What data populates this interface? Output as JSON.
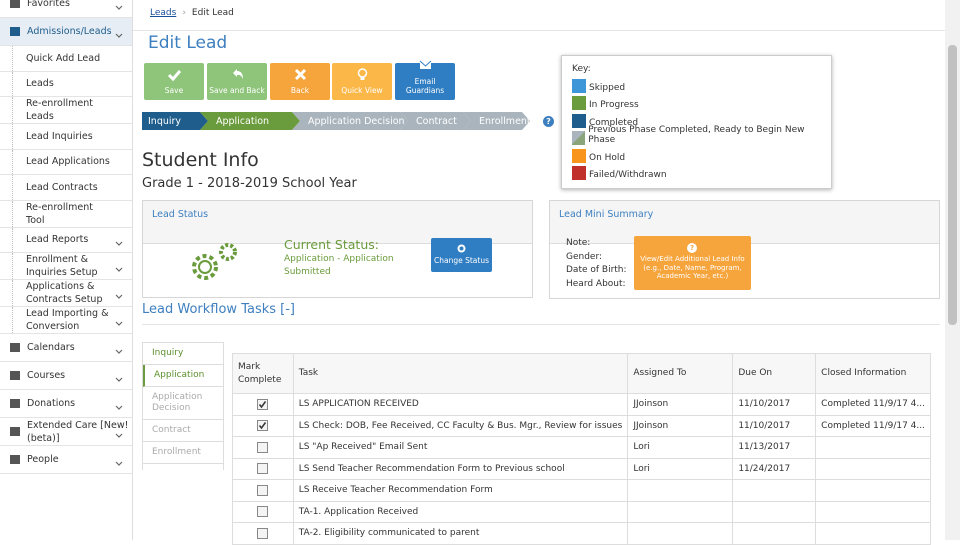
{
  "sidebar": {
    "items": [
      {
        "label": "Favorites",
        "level": 0,
        "chevron": true
      },
      {
        "label": "Admissions/Leads",
        "level": 0,
        "chevron": true,
        "active": true
      },
      {
        "label": "Quick Add Lead",
        "level": 1
      },
      {
        "label": "Leads",
        "level": 1
      },
      {
        "label": "Re-enrollment Leads",
        "level": 1
      },
      {
        "label": "Lead Inquiries",
        "level": 1
      },
      {
        "label": "Lead Applications",
        "level": 1
      },
      {
        "label": "Lead Contracts",
        "level": 1
      },
      {
        "label": "Re-enrollment Tool",
        "level": 1
      },
      {
        "label": "Lead Reports",
        "level": 1,
        "chevron": true
      },
      {
        "label": "Enrollment & Inquiries Setup",
        "level": 1,
        "chevron": true
      },
      {
        "label": "Applications & Contracts Setup",
        "level": 1,
        "chevron": true
      },
      {
        "label": "Lead Importing & Conversion",
        "level": 1,
        "chevron": true
      },
      {
        "label": "Calendars",
        "level": 0,
        "chevron": true
      },
      {
        "label": "Courses",
        "level": 0,
        "chevron": true
      },
      {
        "label": "Donations",
        "level": 0,
        "chevron": true
      },
      {
        "label": "Extended Care [New! (beta)]",
        "level": 0,
        "chevron": true
      },
      {
        "label": "People",
        "level": 0,
        "chevron": true
      }
    ]
  },
  "breadcrumb": [
    "Leads",
    "Edit Lead"
  ],
  "page_title": "Edit Lead",
  "buttons": [
    {
      "label": "Save",
      "color": "#8fc47b"
    },
    {
      "label": "Save and Back",
      "color": "#8fc47b"
    },
    {
      "label": "Back",
      "color": "#f6a43c"
    },
    {
      "label": "Quick View",
      "color": "#fbb848"
    },
    {
      "label": "Email Guardians",
      "color": "#2f7dc2"
    }
  ],
  "workflow_steps": [
    {
      "label": "Inquiry",
      "color": "#1f5d8c"
    },
    {
      "label": "Application",
      "color": "#6a9b3c"
    },
    {
      "label": "Application Decision",
      "color": "#a9b4bc"
    },
    {
      "label": "Contract",
      "color": "#a9b4bc"
    },
    {
      "label": "Enrollment",
      "color": "#a9b4bc"
    }
  ],
  "key": {
    "title": "Key:",
    "items": [
      {
        "label": "Skipped",
        "color": "#3d96d8"
      },
      {
        "label": "In Progress",
        "color": "#6a9b3c"
      },
      {
        "label": "Completed",
        "color": "#1f5d8c"
      },
      {
        "label": "Previous Phase Completed, Ready to Begin New Phase",
        "color": "#8aa57c"
      },
      {
        "label": "On Hold",
        "color": "#f7951d"
      },
      {
        "label": "Failed/Withdrawn",
        "color": "#c0312b"
      }
    ]
  },
  "student_info": {
    "title": "Student Info",
    "subtitle": "Grade 1 - 2018-2019 School Year"
  },
  "lead_status": {
    "title": "Lead Status",
    "current_status_label": "Current Status:",
    "status": "Application - Application Submitted",
    "button": "Change Status"
  },
  "lead_mini_summary": {
    "title": "Lead Mini Summary",
    "fields": [
      "Note:",
      "Gender:",
      "Date of Birth:",
      "Heard About:"
    ],
    "button": "View/Edit Additional Lead Info (e.g., Date, Name, Program, Academic Year, etc.)"
  },
  "workflow_tasks": {
    "title": "Lead Workflow Tasks [-]",
    "tabs": [
      {
        "label": "Inquiry",
        "active": false
      },
      {
        "label": "Application",
        "active": true
      },
      {
        "label": "Application Decision",
        "active": false
      },
      {
        "label": "Contract",
        "active": false
      },
      {
        "label": "Enrollment",
        "active": false
      }
    ],
    "columns": [
      "Mark Complete",
      "Task",
      "Assigned To",
      "Due On",
      "Closed Information"
    ],
    "rows": [
      {
        "checked": true,
        "task": "LS APPLICATION RECEIVED",
        "assigned_to": "JJoinson",
        "due_on": "11/10/2017",
        "closed": "Completed 11/9/17 4..."
      },
      {
        "checked": true,
        "task": "LS Check: DOB, Fee Received, CC Faculty & Bus. Mgr., Review for issues",
        "assigned_to": "JJoinson",
        "due_on": "11/10/2017",
        "closed": "Completed 11/9/17 4..."
      },
      {
        "checked": false,
        "task": "LS \"Ap Received\" Email Sent",
        "assigned_to": "Lori",
        "due_on": "11/13/2017",
        "closed": null
      },
      {
        "checked": false,
        "task": "LS Send Teacher Recommendation Form to Previous school",
        "assigned_to": "Lori",
        "due_on": "11/24/2017",
        "closed": null
      },
      {
        "checked": false,
        "task": "LS Receive Teacher Recommendation Form",
        "assigned_to": null,
        "due_on": null,
        "closed": null
      },
      {
        "checked": false,
        "task": "TA-1. Application Received",
        "assigned_to": null,
        "due_on": null,
        "closed": null
      },
      {
        "checked": false,
        "task": "TA-2. Eligibility communicated to parent",
        "assigned_to": null,
        "due_on": null,
        "closed": null
      }
    ]
  }
}
